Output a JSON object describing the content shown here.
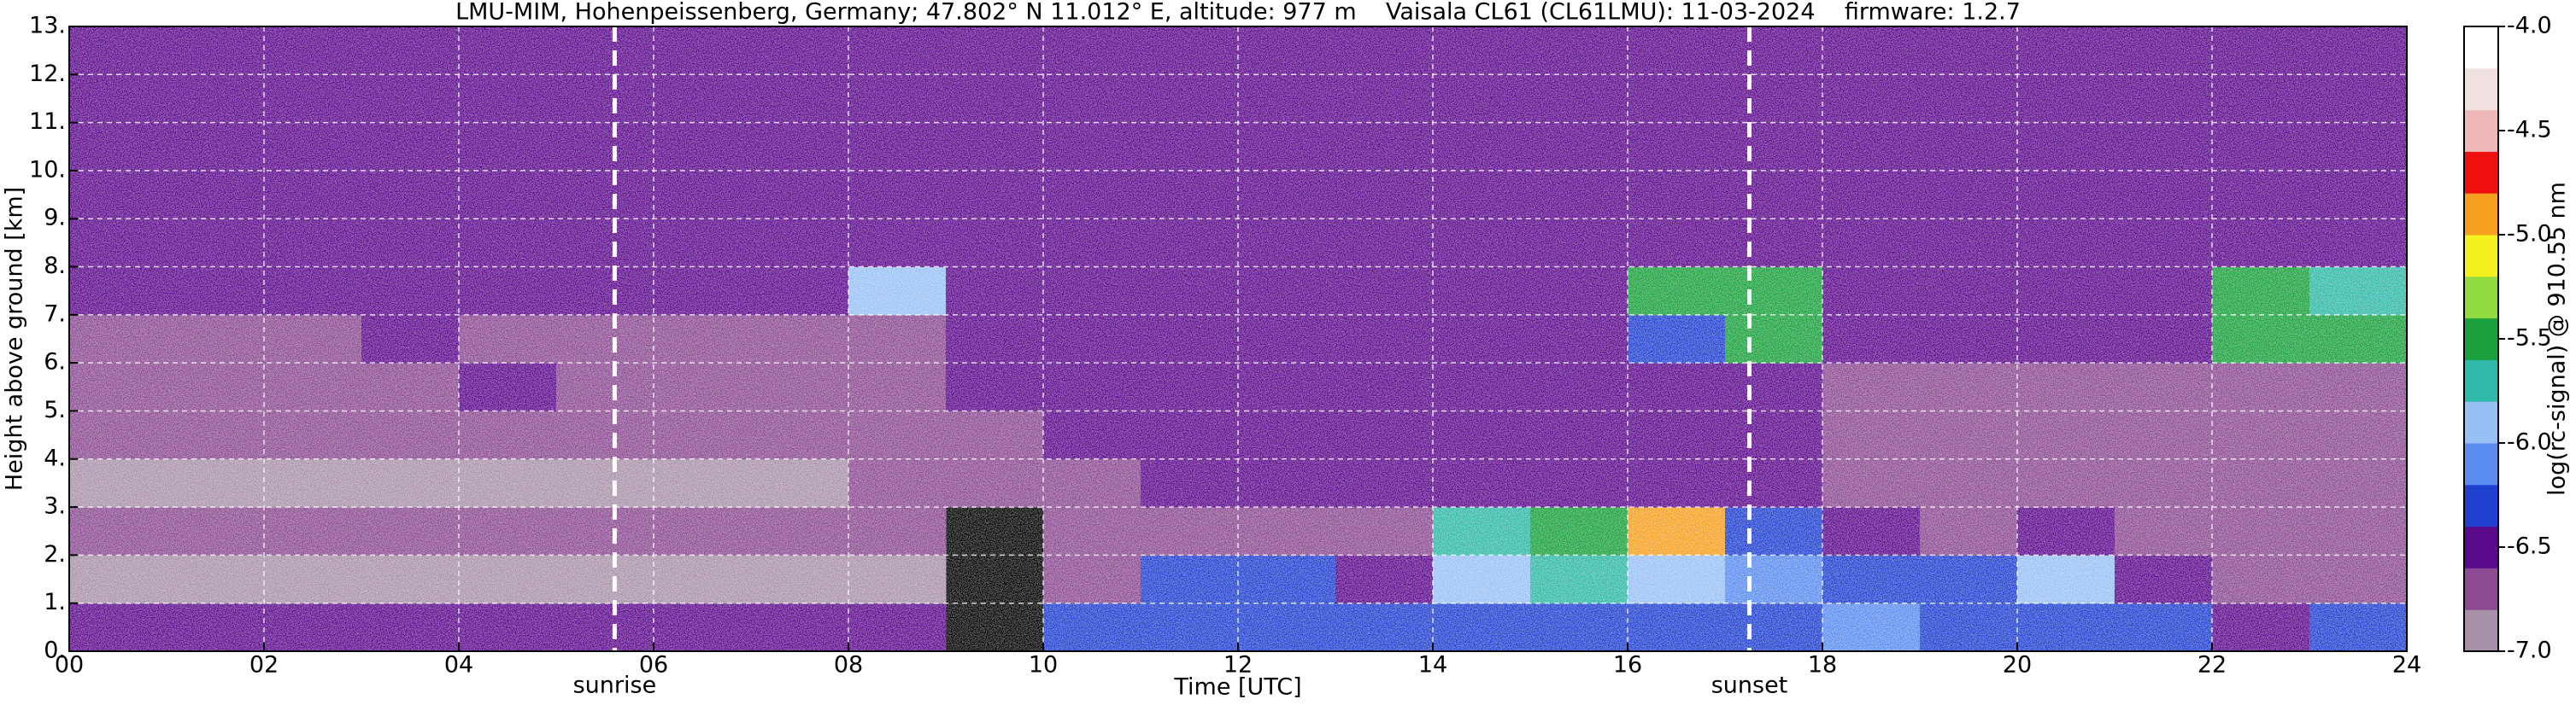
{
  "chart_data": {
    "type": "heatmap",
    "title": "LMU-MIM, Hohenpeissenberg, Germany; 47.802° N 11.012° E, altitude: 977 m    Vaisala CL61 (CL61LMU): 11-03-2024    firmware: 1.2.7",
    "x_label": "Time [UTC]",
    "y_label": "Height above ground [km]",
    "colorbar_label": "log(rc-signal) @ 910.55 nm",
    "xlim": [
      0,
      24
    ],
    "ylim": [
      0,
      13
    ],
    "xticks": [
      {
        "value": 0,
        "label": "00"
      },
      {
        "value": 2,
        "label": "02"
      },
      {
        "value": 4,
        "label": "04"
      },
      {
        "value": 6,
        "label": "06"
      },
      {
        "value": 8,
        "label": "08"
      },
      10,
      12,
      14,
      16,
      18,
      20,
      22,
      24
    ],
    "yticks": [
      {
        "value": 0,
        "label": "0."
      },
      {
        "value": 1,
        "label": "1."
      },
      {
        "value": 2,
        "label": "2."
      },
      {
        "value": 3,
        "label": "3."
      },
      {
        "value": 4,
        "label": "4."
      },
      {
        "value": 5,
        "label": "5."
      },
      {
        "value": 6,
        "label": "6."
      },
      {
        "value": 7,
        "label": "7."
      },
      {
        "value": 8,
        "label": "8."
      },
      {
        "value": 9,
        "label": "9."
      },
      {
        "value": 10,
        "label": "10."
      },
      {
        "value": 11,
        "label": "11."
      },
      {
        "value": 12,
        "label": "12."
      },
      {
        "value": 13,
        "label": "13."
      }
    ],
    "grid": true,
    "clim": [
      -7,
      -4
    ],
    "cticks": [
      {
        "value": -4,
        "label": "-4.0"
      },
      -4.5,
      {
        "value": -5,
        "label": "-5.0"
      },
      -5.5,
      {
        "value": -6,
        "label": "-6.0"
      },
      -6.5,
      {
        "value": -7,
        "label": "-7.0"
      }
    ],
    "colorscale": [
      "#a891a8",
      "#8b4a91",
      "#5c0a8c",
      "#2040d0",
      "#5a8cf0",
      "#98c0f5",
      "#30b8a8",
      "#19a03c",
      "#90dc40",
      "#f5f020",
      "#f5a020",
      "#f01010",
      "#f0b8b8",
      "#f0e0e0",
      "#ffffff"
    ],
    "xbins": [
      0,
      1,
      2,
      3,
      4,
      5,
      6,
      7,
      8,
      9,
      10,
      11,
      12,
      13,
      14,
      15,
      16,
      17,
      18,
      19,
      20,
      21,
      22,
      23,
      24
    ],
    "ybins": [
      0,
      1,
      2,
      3,
      4,
      5,
      6,
      7,
      8,
      9,
      10,
      11,
      12,
      13
    ],
    "values": [
      [
        -6.6,
        -6.6,
        -6.6,
        -6.6,
        -6.6,
        -6.6,
        -6.6,
        -6.6,
        -6.6,
        null,
        -6.3,
        -6.3,
        -6.3,
        -6.2,
        -6.2,
        -6.2,
        -6.2,
        -6.2,
        -6.1,
        -6.2,
        -6.2,
        -6.3,
        -6.4,
        -6.3
      ],
      [
        -6.9,
        -6.9,
        -6.9,
        -6.9,
        -6.9,
        -6.9,
        -6.9,
        -6.9,
        -6.9,
        null,
        -6.7,
        -6.3,
        -6.3,
        -6.4,
        -6.0,
        -5.8,
        -6.0,
        -6.1,
        -6.2,
        -6.2,
        -6.0,
        -6.4,
        -6.7,
        -6.7
      ],
      [
        -6.8,
        -6.8,
        -6.8,
        -6.8,
        -6.8,
        -6.8,
        -6.8,
        -6.8,
        -6.8,
        null,
        -6.8,
        -6.8,
        -6.8,
        -6.8,
        -5.8,
        -5.6,
        -5.0,
        -6.3,
        -6.5,
        -6.8,
        -6.5,
        -6.8,
        -6.8,
        -6.7
      ],
      [
        -6.9,
        -6.9,
        -6.9,
        -6.9,
        -6.9,
        -6.9,
        -6.9,
        -6.9,
        -6.8,
        -6.8,
        -6.7,
        -6.6,
        -6.6,
        -6.6,
        -6.6,
        -6.6,
        -6.6,
        -6.6,
        -6.8,
        -6.8,
        -6.8,
        -6.8,
        -6.8,
        -6.8
      ],
      [
        -6.8,
        -6.8,
        -6.8,
        -6.8,
        -6.8,
        -6.8,
        -6.8,
        -6.8,
        -6.7,
        -6.7,
        -6.6,
        -6.5,
        -6.5,
        -6.5,
        -6.6,
        -6.6,
        -6.6,
        -6.6,
        -6.8,
        -6.8,
        -6.8,
        -6.8,
        -6.8,
        -6.8
      ],
      [
        -6.7,
        -6.7,
        -6.7,
        -6.7,
        -6.5,
        -6.7,
        -6.7,
        -6.7,
        -6.7,
        -6.6,
        -6.6,
        -6.5,
        -6.5,
        -6.5,
        -6.6,
        -6.6,
        -6.6,
        -6.6,
        -6.8,
        -6.8,
        -6.8,
        -6.8,
        -6.8,
        -6.8
      ],
      [
        -6.7,
        -6.7,
        -6.7,
        -6.5,
        -6.7,
        -6.7,
        -6.7,
        -6.7,
        -6.7,
        -6.6,
        -6.6,
        -6.5,
        -6.5,
        -6.5,
        -6.6,
        -6.6,
        -6.2,
        -5.6,
        -6.6,
        -6.6,
        -6.6,
        -6.4,
        -5.4,
        -5.6
      ],
      [
        -6.6,
        -6.6,
        -6.6,
        -6.6,
        -6.6,
        -6.6,
        -6.5,
        -6.5,
        -6.0,
        -6.6,
        -6.4,
        -6.5,
        -6.5,
        -6.5,
        -6.6,
        -6.6,
        -5.6,
        -5.5,
        -6.6,
        -6.6,
        -6.6,
        -6.5,
        -5.5,
        -5.7
      ],
      [
        -6.6,
        -6.6,
        -6.6,
        -6.6,
        -6.6,
        -6.6,
        -6.6,
        -6.6,
        -6.6,
        -6.6,
        -6.5,
        -6.4,
        -6.4,
        -6.4,
        -6.4,
        -6.4,
        -6.5,
        -6.5,
        -6.6,
        -6.6,
        -6.6,
        -6.6,
        -6.5,
        -6.5
      ],
      [
        -6.6,
        -6.6,
        -6.6,
        -6.6,
        -6.6,
        -6.6,
        -6.6,
        -6.6,
        -6.6,
        -6.6,
        -6.5,
        -6.4,
        -6.4,
        -6.4,
        -6.4,
        -6.4,
        -6.5,
        -6.5,
        -6.6,
        -6.6,
        -6.6,
        -6.6,
        -6.6,
        -6.6
      ],
      [
        -6.6,
        -6.6,
        -6.6,
        -6.6,
        -6.6,
        -6.6,
        -6.6,
        -6.6,
        -6.6,
        -6.6,
        -6.5,
        -6.4,
        -6.4,
        -6.4,
        -6.4,
        -6.4,
        -6.5,
        -6.5,
        -6.6,
        -6.6,
        -6.6,
        -6.6,
        -6.6,
        -6.6
      ],
      [
        -6.6,
        -6.6,
        -6.6,
        -6.6,
        -6.6,
        -6.6,
        -6.6,
        -6.6,
        -6.6,
        -6.6,
        -6.5,
        -6.4,
        -6.4,
        -6.4,
        -6.4,
        -6.4,
        -6.5,
        -6.5,
        -6.6,
        -6.6,
        -6.6,
        -6.6,
        -6.6,
        -6.6
      ],
      [
        -6.6,
        -6.6,
        -6.6,
        -6.6,
        -6.6,
        -6.6,
        -6.6,
        -6.6,
        -6.6,
        -6.6,
        -6.5,
        -6.4,
        -6.4,
        -6.4,
        -6.4,
        -6.4,
        -6.5,
        -6.5,
        -6.6,
        -6.6,
        -6.6,
        -6.6,
        -6.6,
        -6.6
      ]
    ],
    "annotations": [
      {
        "text": "sunrise",
        "x": 5.6
      },
      {
        "text": "sunset",
        "x": 17.25
      }
    ]
  }
}
